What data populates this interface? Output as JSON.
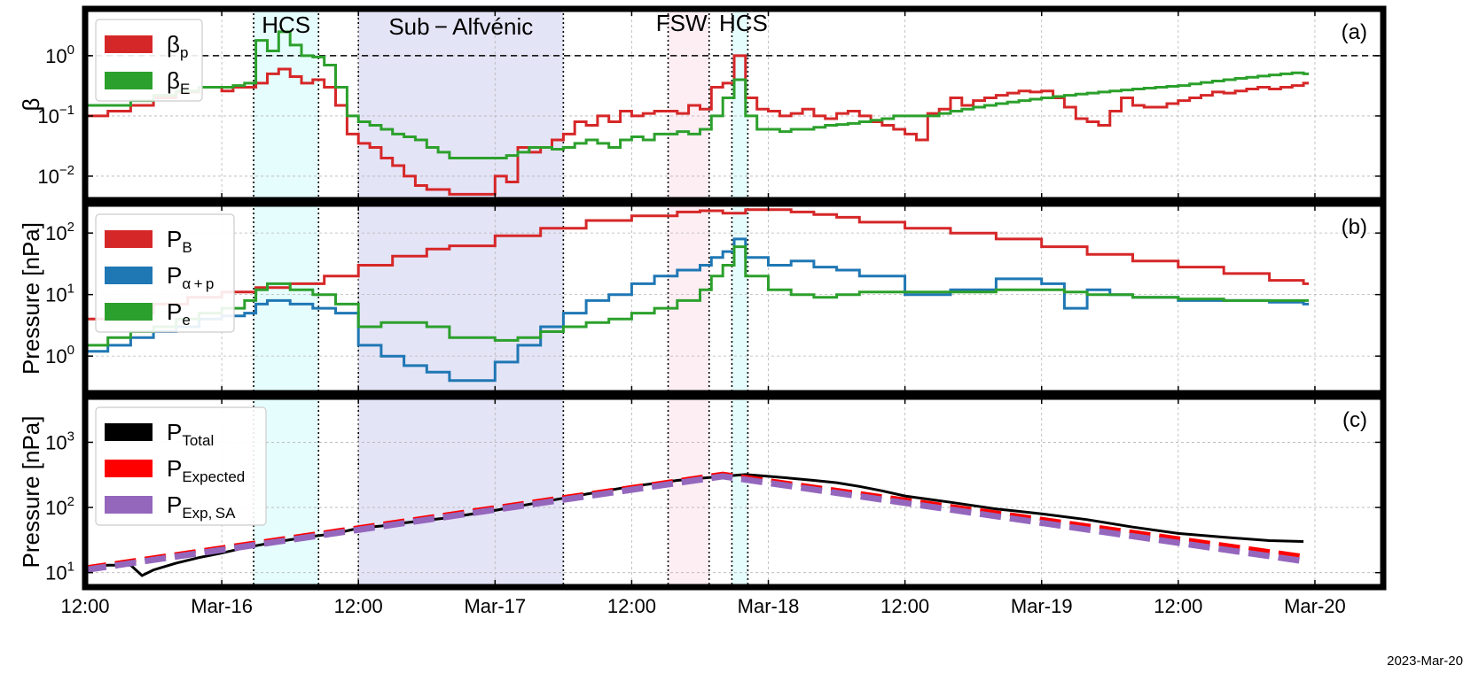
{
  "figure": {
    "date_label": "2023-Mar-20"
  },
  "x_axis": {
    "range_hours": [
      0,
      114
    ],
    "tick_hours": [
      0,
      12,
      24,
      36,
      48,
      60,
      72,
      84,
      96,
      108
    ],
    "tick_labels": [
      "12:00",
      "Mar-16",
      "12:00",
      "Mar-17",
      "12:00",
      "Mar-18",
      "12:00",
      "Mar-19",
      "12:00",
      "Mar-20"
    ]
  },
  "regions": [
    {
      "label": "HCS",
      "start": 14.8,
      "end": 20.5,
      "color": "#e6fdfd"
    },
    {
      "label": "Sub − Alfvénic",
      "start": 24.0,
      "end": 42.0,
      "color": "#e4e4f7"
    },
    {
      "label": "FSW",
      "start": 51.2,
      "end": 54.8,
      "color": "#fdeef3"
    },
    {
      "label": "HCS",
      "start": 56.8,
      "end": 58.2,
      "color": "#e6fdfd"
    }
  ],
  "chart_data": [
    {
      "type": "line",
      "panel_label": "(a)",
      "ylabel": "β",
      "yscale": "log",
      "ylim": [
        0.004,
        6
      ],
      "yticks": [
        {
          "v": 0.01,
          "base": "10",
          "exp": "−2"
        },
        {
          "v": 0.1,
          "base": "10",
          "exp": "−1"
        },
        {
          "v": 1,
          "base": "10",
          "exp": "0"
        }
      ],
      "reference_line": 1,
      "grid": true,
      "legend_position": "top-left",
      "series": [
        {
          "name": "β",
          "sub": "p",
          "color": "#d62728",
          "x": [
            0,
            2,
            4,
            6,
            8,
            10,
            12,
            13,
            14,
            15,
            16,
            17,
            18,
            19,
            20,
            21,
            22,
            23,
            24,
            25,
            26,
            27,
            28,
            29,
            30,
            31,
            32,
            36,
            37,
            38,
            39,
            40,
            41,
            42,
            43,
            44,
            45,
            46,
            47,
            48,
            49,
            50,
            51,
            52,
            53,
            54,
            55,
            56,
            57,
            58,
            59,
            60,
            61,
            62,
            63,
            64,
            65,
            66,
            67,
            68,
            69,
            70,
            71,
            72,
            73,
            74,
            75,
            76,
            77,
            78,
            79,
            80,
            81,
            82,
            83,
            84,
            85,
            86,
            87,
            88,
            89,
            90,
            91,
            92,
            93,
            94,
            95,
            96,
            97,
            98,
            99,
            100,
            101,
            102,
            103,
            104,
            105,
            106,
            107
          ],
          "y": [
            0.1,
            0.12,
            0.15,
            0.2,
            0.25,
            0.3,
            0.26,
            0.3,
            0.3,
            0.35,
            0.5,
            0.6,
            0.45,
            0.35,
            0.4,
            0.3,
            0.15,
            0.05,
            0.035,
            0.03,
            0.02,
            0.015,
            0.01,
            0.007,
            0.006,
            0.006,
            0.005,
            0.01,
            0.008,
            0.03,
            0.025,
            0.03,
            0.04,
            0.05,
            0.08,
            0.07,
            0.1,
            0.08,
            0.12,
            0.1,
            0.11,
            0.12,
            0.12,
            0.11,
            0.15,
            0.13,
            0.3,
            0.35,
            1.0,
            0.2,
            0.13,
            0.12,
            0.1,
            0.11,
            0.13,
            0.1,
            0.09,
            0.11,
            0.12,
            0.1,
            0.08,
            0.07,
            0.06,
            0.05,
            0.04,
            0.11,
            0.13,
            0.2,
            0.15,
            0.18,
            0.2,
            0.22,
            0.24,
            0.26,
            0.25,
            0.26,
            0.2,
            0.14,
            0.09,
            0.08,
            0.07,
            0.12,
            0.2,
            0.15,
            0.14,
            0.14,
            0.16,
            0.18,
            0.2,
            0.22,
            0.25,
            0.24,
            0.26,
            0.28,
            0.3,
            0.28,
            0.3,
            0.32,
            0.35
          ]
        },
        {
          "name": "β",
          "sub": "E",
          "color": "#2ca02c",
          "x": [
            0,
            2,
            4,
            6,
            8,
            10,
            12,
            13,
            14,
            15,
            16,
            17,
            18,
            19,
            20,
            21,
            22,
            23,
            24,
            25,
            26,
            27,
            28,
            29,
            30,
            31,
            32,
            36,
            37,
            38,
            39,
            40,
            41,
            42,
            43,
            44,
            45,
            46,
            47,
            48,
            49,
            50,
            51,
            52,
            53,
            54,
            55,
            56,
            57,
            58,
            59,
            60,
            61,
            62,
            63,
            64,
            65,
            66,
            67,
            68,
            69,
            70,
            71,
            72,
            73,
            74,
            75,
            76,
            77,
            78,
            79,
            80,
            81,
            82,
            83,
            84,
            85,
            86,
            87,
            88,
            89,
            90,
            91,
            92,
            93,
            94,
            95,
            96,
            97,
            98,
            99,
            100,
            101,
            102,
            103,
            104,
            105,
            106,
            107
          ],
          "y": [
            0.15,
            0.15,
            0.18,
            0.22,
            0.26,
            0.3,
            0.3,
            0.32,
            0.35,
            1.8,
            1.2,
            2.5,
            1.5,
            1.0,
            0.95,
            0.7,
            0.3,
            0.1,
            0.08,
            0.07,
            0.06,
            0.05,
            0.045,
            0.04,
            0.03,
            0.025,
            0.02,
            0.02,
            0.022,
            0.025,
            0.03,
            0.03,
            0.028,
            0.03,
            0.035,
            0.04,
            0.035,
            0.03,
            0.04,
            0.045,
            0.04,
            0.05,
            0.05,
            0.055,
            0.05,
            0.06,
            0.1,
            0.2,
            0.4,
            0.1,
            0.06,
            0.06,
            0.055,
            0.06,
            0.06,
            0.065,
            0.07,
            0.072,
            0.075,
            0.08,
            0.085,
            0.09,
            0.1,
            0.1,
            0.1,
            0.1,
            0.11,
            0.12,
            0.13,
            0.14,
            0.15,
            0.16,
            0.17,
            0.18,
            0.19,
            0.2,
            0.21,
            0.22,
            0.23,
            0.24,
            0.25,
            0.26,
            0.27,
            0.28,
            0.29,
            0.3,
            0.31,
            0.32,
            0.34,
            0.36,
            0.38,
            0.4,
            0.42,
            0.44,
            0.46,
            0.48,
            0.5,
            0.52,
            0.5
          ]
        }
      ]
    },
    {
      "type": "line",
      "panel_label": "(b)",
      "ylabel": "Pressure [nPa]",
      "yscale": "log",
      "ylim": [
        0.25,
        300
      ],
      "yticks": [
        {
          "v": 1,
          "base": "10",
          "exp": "0"
        },
        {
          "v": 10,
          "base": "10",
          "exp": "1"
        },
        {
          "v": 100,
          "base": "10",
          "exp": "2"
        }
      ],
      "grid": true,
      "legend_position": "top-left",
      "series": [
        {
          "name": "P",
          "sub": "B",
          "color": "#d62728",
          "x": [
            0,
            3,
            6,
            9,
            12,
            15,
            18,
            21,
            24,
            27,
            30,
            32,
            36,
            40,
            44,
            48,
            52,
            54,
            56,
            58,
            60,
            62,
            64,
            66,
            68,
            72,
            76,
            80,
            84,
            88,
            92,
            96,
            100,
            104,
            107
          ],
          "y": [
            4,
            5,
            7,
            9,
            11,
            13,
            15,
            20,
            30,
            42,
            55,
            62,
            90,
            120,
            160,
            190,
            220,
            230,
            210,
            240,
            240,
            220,
            200,
            180,
            150,
            120,
            100,
            80,
            60,
            45,
            35,
            28,
            22,
            17,
            15
          ]
        },
        {
          "name": "P",
          "sub": "α + p",
          "color": "#1f77b4",
          "x": [
            0,
            2,
            4,
            6,
            8,
            10,
            12,
            14,
            15,
            16,
            18,
            20,
            22,
            24,
            26,
            28,
            30,
            32,
            36,
            38,
            40,
            42,
            44,
            46,
            48,
            50,
            52,
            54,
            55,
            56,
            57,
            58,
            60,
            62,
            64,
            66,
            68,
            72,
            76,
            80,
            84,
            86,
            88,
            90,
            92,
            96,
            100,
            104,
            107
          ],
          "y": [
            1.2,
            1.5,
            2,
            2.5,
            3,
            4,
            4.5,
            5,
            7,
            8,
            7,
            6,
            5,
            1.5,
            1,
            0.7,
            0.55,
            0.4,
            0.8,
            1.5,
            3,
            5,
            8,
            10,
            15,
            20,
            25,
            30,
            40,
            50,
            80,
            40,
            30,
            35,
            28,
            25,
            20,
            10,
            12,
            18,
            15,
            6,
            12,
            10,
            9,
            8,
            8,
            7.5,
            7
          ]
        },
        {
          "name": "P",
          "sub": "e",
          "color": "#2ca02c",
          "x": [
            0,
            2,
            4,
            6,
            8,
            10,
            12,
            14,
            15,
            16,
            18,
            20,
            22,
            24,
            26,
            28,
            30,
            32,
            36,
            38,
            40,
            42,
            44,
            46,
            48,
            50,
            52,
            54,
            55,
            56,
            57,
            58,
            60,
            62,
            64,
            66,
            68,
            72,
            76,
            80,
            84,
            86,
            88,
            90,
            92,
            96,
            100,
            104,
            107
          ],
          "y": [
            1.5,
            2,
            2.5,
            3,
            4,
            5,
            6,
            8,
            12,
            15,
            12,
            10,
            7,
            3,
            3.5,
            3.5,
            3,
            2,
            1.8,
            2,
            2.5,
            3,
            3.5,
            4,
            5,
            6,
            8,
            12,
            20,
            30,
            60,
            20,
            12,
            10,
            9,
            10,
            11,
            11,
            11,
            12,
            12,
            11,
            10,
            10,
            9,
            8.5,
            8,
            8,
            8
          ]
        }
      ]
    },
    {
      "type": "line",
      "panel_label": "(c)",
      "ylabel": "Pressure [nPa]",
      "yscale": "log",
      "ylim": [
        6,
        5000
      ],
      "yticks": [
        {
          "v": 10,
          "base": "10",
          "exp": "1"
        },
        {
          "v": 100,
          "base": "10",
          "exp": "2"
        },
        {
          "v": 1000,
          "base": "10",
          "exp": "3"
        }
      ],
      "grid": true,
      "legend_position": "top-left",
      "series": [
        {
          "name": "P",
          "sub": "Total",
          "color": "#000000",
          "style": "solid",
          "x": [
            0,
            2,
            4,
            5,
            6,
            8,
            10,
            12,
            14,
            16,
            18,
            20,
            22,
            24,
            26,
            28,
            32,
            36,
            40,
            44,
            48,
            52,
            56,
            58,
            60,
            62,
            64,
            66,
            68,
            70,
            72,
            76,
            80,
            84,
            88,
            92,
            96,
            100,
            104,
            107
          ],
          "y": [
            12,
            13,
            13,
            9,
            11,
            14,
            17,
            20,
            24,
            28,
            32,
            36,
            40,
            48,
            52,
            58,
            70,
            90,
            120,
            160,
            210,
            260,
            300,
            320,
            300,
            280,
            260,
            240,
            210,
            180,
            150,
            120,
            95,
            80,
            65,
            50,
            40,
            35,
            31,
            30
          ]
        },
        {
          "name": "P",
          "sub": "Expected",
          "color": "#ff0000",
          "style": "dashed",
          "x": [
            0,
            56,
            107
          ],
          "y": [
            12,
            330,
            18
          ]
        },
        {
          "name": "P",
          "sub": "Exp, SA",
          "color": "#9467bd",
          "style": "dashed-thick",
          "x": [
            0,
            56,
            107
          ],
          "y": [
            11,
            300,
            15
          ]
        }
      ]
    }
  ]
}
